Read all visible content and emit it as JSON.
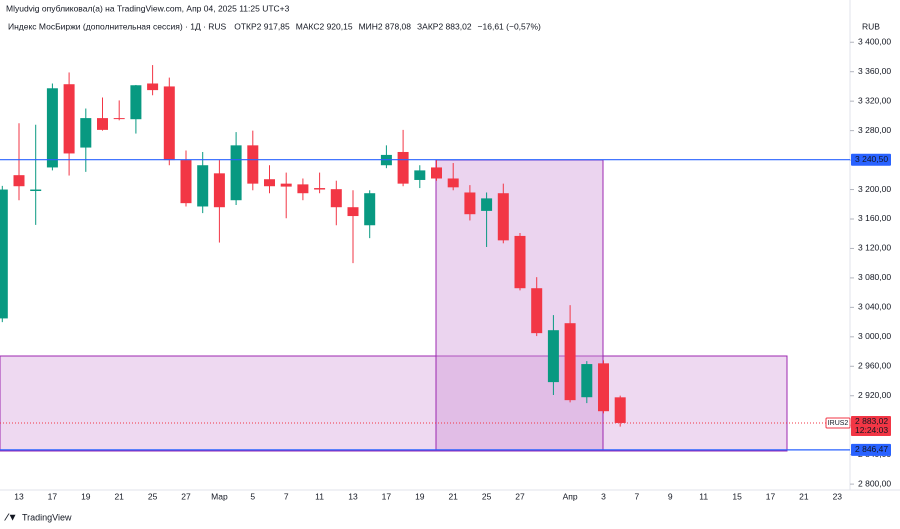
{
  "header": {
    "published": "Mlyudvig опубликовал(а) на TradingView.com, Апр 04, 2025 11:25 UTC+3",
    "brand": "TradingView"
  },
  "chart_data": {
    "type": "candlestick",
    "title": "Индекс МосБиржи (дополнительная сессия) · 1Д · RUS",
    "ohlc_header": [
      {
        "label": "ОТКР",
        "value": "2 917,85"
      },
      {
        "label": "МАКС",
        "value": "2 920,15"
      },
      {
        "label": "МИН",
        "value": "2 878,08"
      },
      {
        "label": "ЗАКР",
        "value": "2 883,02"
      }
    ],
    "change": "−16,61 (−0,57%)",
    "currency": "RUB",
    "categories": [
      null,
      "13",
      null,
      "17",
      null,
      "19",
      null,
      "21",
      null,
      "25",
      null,
      "27",
      null,
      "Мар",
      null,
      "5",
      null,
      "7",
      null,
      "11",
      null,
      "13",
      null,
      "17",
      null,
      "19",
      null,
      "21",
      null,
      "25",
      null,
      "27",
      null,
      null,
      "Апр",
      null,
      "3",
      null,
      "7",
      null,
      "9",
      null,
      "11",
      null,
      "15",
      null,
      "17",
      null,
      "21",
      null,
      "23"
    ],
    "open": [
      3025,
      3219.5,
      3198,
      3230,
      3343,
      3257,
      3297,
      3297,
      3295.5,
      3344,
      3340,
      3240,
      3177,
      3222,
      3185.5,
      3260,
      3214,
      3208,
      3207,
      3202,
      3200.5,
      3176,
      3151.5,
      3233,
      3251,
      3213,
      3230,
      3215,
      3196,
      3171,
      3195,
      3137,
      3066,
      2938.5,
      3018.5,
      2918,
      2964,
      2917.85,
      null,
      null,
      null,
      null,
      null,
      null,
      null,
      null,
      null,
      null,
      null,
      null,
      null
    ],
    "high": [
      3205,
      3290,
      3288,
      3344,
      3359,
      3310,
      3325,
      3321,
      3342,
      3369,
      3352,
      3253,
      3251,
      3240,
      3278,
      3280,
      3233,
      3223,
      3215,
      3223,
      3212,
      3199,
      3199,
      3260,
      3281,
      3233,
      3240,
      3236,
      3206,
      3196,
      3208,
      3141,
      3081,
      3029.5,
      3043,
      2967,
      2968,
      2920.15,
      null,
      null,
      null,
      null,
      null,
      null,
      null,
      null,
      null,
      null,
      null,
      null,
      null
    ],
    "low": [
      3020,
      3185.5,
      3152,
      3226,
      3219,
      3224,
      3280,
      3294,
      3276,
      3328,
      3233,
      3177,
      3168,
      3128,
      3179,
      3199,
      3195,
      3161,
      3185.5,
      3195,
      3151.5,
      3100,
      3134,
      3229,
      3204.5,
      3202,
      3212,
      3199,
      3158,
      3122,
      3127,
      3063,
      3001,
      2921,
      2911,
      2910,
      2896,
      2878.08,
      null,
      null,
      null,
      null,
      null,
      null,
      null,
      null,
      null,
      null,
      null,
      null,
      null
    ],
    "close": [
      3200,
      3204.5,
      3200,
      3337.5,
      3249,
      3297,
      3281,
      3296,
      3341.6,
      3335,
      3240,
      3181.5,
      3233,
      3176,
      3260,
      3208,
      3204.5,
      3204,
      3195,
      3200,
      3176,
      3164,
      3195,
      3247,
      3208,
      3226,
      3215,
      3203,
      3166.5,
      3188,
      3131,
      3066,
      3005,
      3009,
      2914,
      2963,
      2899,
      2883.02,
      null,
      null,
      null,
      null,
      null,
      null,
      null,
      null,
      null,
      null,
      null,
      null,
      null
    ],
    "up_color": "#089981",
    "down_color": "#f23645",
    "ylim": [
      2792,
      3437
    ],
    "yticks": [
      {
        "value": 2800,
        "label": "2 800,00"
      },
      {
        "value": 2840,
        "label": "2 840,00"
      },
      {
        "value": 2880,
        "label": "2 880,00"
      },
      {
        "value": 2920,
        "label": "2 920,00"
      },
      {
        "value": 2960,
        "label": "2 960,00"
      },
      {
        "value": 3000,
        "label": "3 000,00"
      },
      {
        "value": 3040,
        "label": "3 040,00"
      },
      {
        "value": 3080,
        "label": "3 080,00"
      },
      {
        "value": 3120,
        "label": "3 120,00"
      },
      {
        "value": 3160,
        "label": "3 160,00"
      },
      {
        "value": 3200,
        "label": "3 200,00"
      },
      {
        "value": 3240,
        "label": "3 240,00"
      },
      {
        "value": 3280,
        "label": "3 280,00"
      },
      {
        "value": 3320,
        "label": "3 320,00"
      },
      {
        "value": 3360,
        "label": "3 360,00"
      },
      {
        "value": 3400,
        "label": "3 400,00"
      }
    ],
    "grid": false,
    "levels": [
      {
        "value": 3240.5,
        "label": "3 240,50",
        "color": "#2962ff"
      },
      {
        "value": 2846.47,
        "label": "2 846,47",
        "color": "#2962ff"
      }
    ],
    "last_price": {
      "value": 2883.02,
      "label": "2 883,02",
      "countdown": "12:24:03",
      "symbol": "IRUS2",
      "color": "#f23645"
    }
  }
}
